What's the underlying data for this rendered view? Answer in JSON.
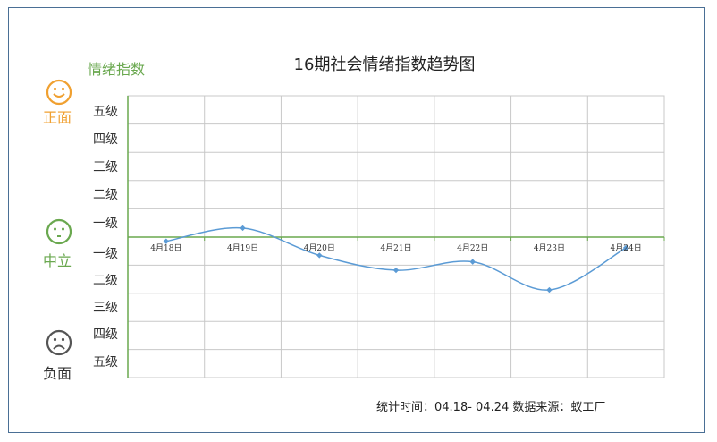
{
  "chart_data": {
    "type": "line",
    "title": "16期社会情绪指数趋势图",
    "ylabel": "情绪指数",
    "categories": [
      "4月18日",
      "4月19日",
      "4月20日",
      "4月21日",
      "4月22日",
      "4月23日",
      "4月24日"
    ],
    "series": [
      {
        "values": [
          -0.15,
          0.32,
          -0.65,
          -1.18,
          -0.88,
          -1.88,
          -0.38
        ]
      }
    ],
    "ylim": [
      -5,
      5
    ],
    "y_tick_labels_positive": [
      "一级",
      "二级",
      "三级",
      "四级",
      "五级"
    ],
    "y_tick_labels_negative": [
      "一级",
      "二级",
      "三级",
      "四级",
      "五级"
    ],
    "grid": true,
    "colors": {
      "line": "#5b9bd5",
      "zero_axis": "#6aa84f",
      "grid": "#c8c8c8",
      "positive": "#f0a030",
      "neutral": "#6aa84f",
      "negative": "#555555"
    },
    "mood_labels": {
      "positive": "正面",
      "neutral": "中立",
      "negative": "负面"
    },
    "mood_icons": {
      "positive": "smile-face-icon",
      "neutral": "neutral-face-icon",
      "negative": "sad-face-icon"
    }
  },
  "footer": "统计时间：04.18- 04.24 数据来源：蚁工厂"
}
